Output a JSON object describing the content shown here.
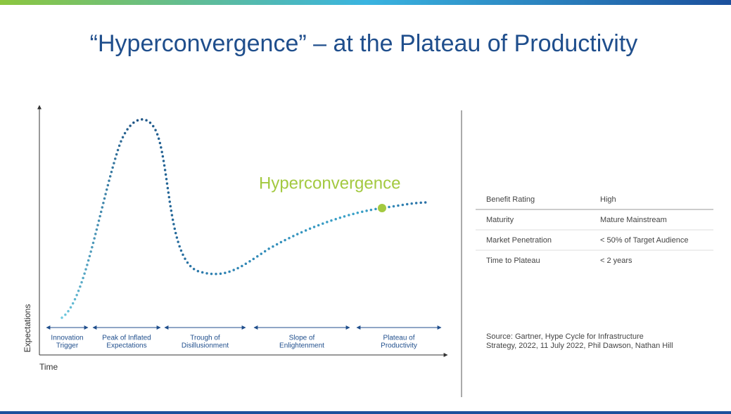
{
  "header": {
    "title": "“Hyperconvergence” – at the Plateau of Productivity"
  },
  "diagram": {
    "y_axis_label": "Expectations",
    "x_axis_label": "Time",
    "highlight_label": "Hyperconvergence",
    "phases": [
      {
        "lines": [
          "Innovation",
          "Trigger"
        ]
      },
      {
        "lines": [
          "Peak of Inflated",
          "Expectations"
        ]
      },
      {
        "lines": [
          "Trough of",
          "Disillusionment"
        ]
      },
      {
        "lines": [
          "Slope of",
          "Enlightenment"
        ]
      },
      {
        "lines": [
          "Plateau of",
          "Productivity"
        ]
      }
    ]
  },
  "table": {
    "rows": [
      [
        "Benefit Rating",
        "High"
      ],
      [
        "Maturity",
        "Mature Mainstream"
      ],
      [
        "Market Penetration",
        "< 50% of Target Audience"
      ],
      [
        "Time to Plateau",
        "< 2 years"
      ]
    ]
  },
  "source": {
    "lines": [
      "Source: Gartner, Hype Cycle for Infrastructure",
      "Strategy, 2022, 11 July 2022, Phil Dawson, Nathan Hill"
    ]
  }
}
